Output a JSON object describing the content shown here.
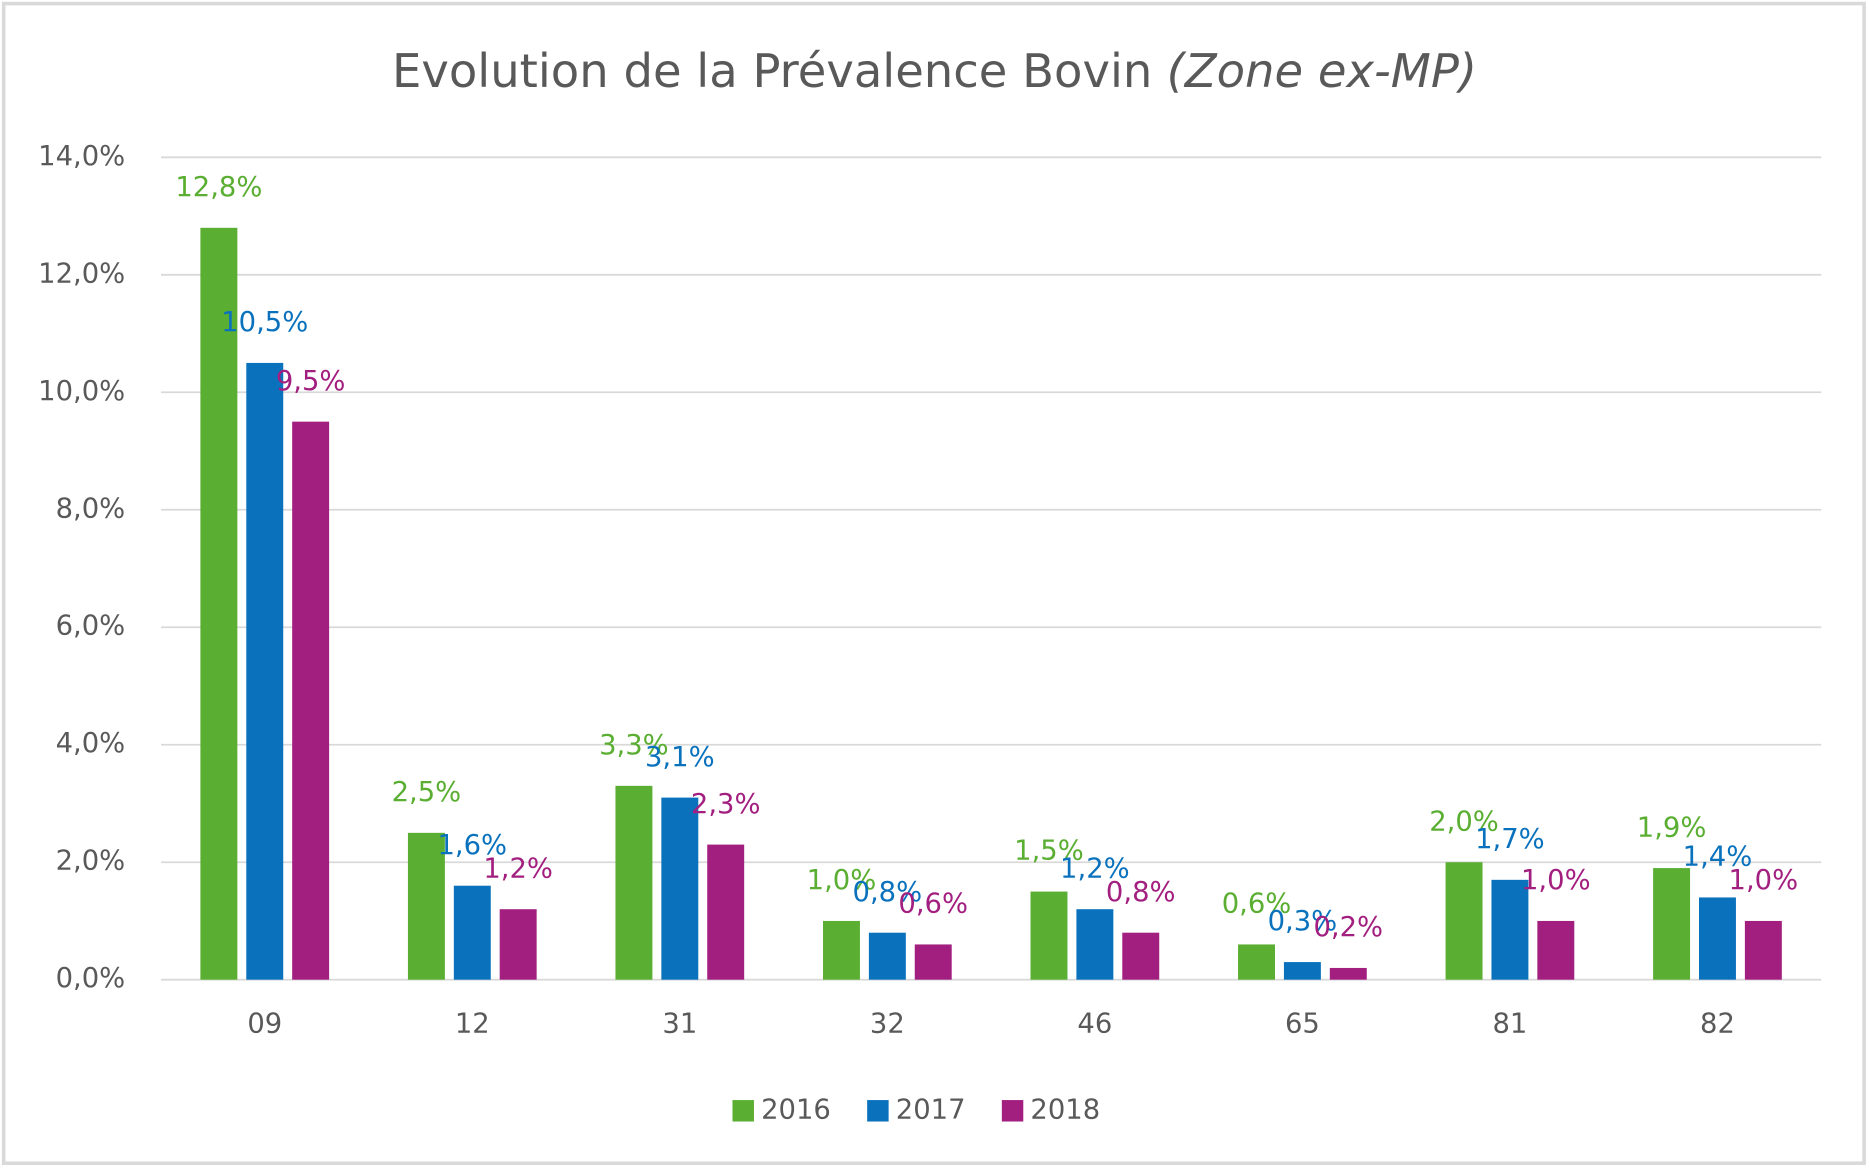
{
  "chart_data": {
    "type": "bar",
    "title": "Evolution de la Prévalence Bovin",
    "title_note": "(Zone ex-MP)",
    "categories": [
      "09",
      "12",
      "31",
      "32",
      "46",
      "65",
      "81",
      "82"
    ],
    "series": [
      {
        "name": "2016",
        "color": "#5aae32",
        "values": [
          12.8,
          2.5,
          3.3,
          1.0,
          1.5,
          0.6,
          2.0,
          1.9
        ],
        "value_labels": [
          "12,8%",
          "2,5%",
          "3,3%",
          "1,0%",
          "1,5%",
          "0,6%",
          "2,0%",
          "1,9%"
        ]
      },
      {
        "name": "2017",
        "color": "#0a72bd",
        "values": [
          10.5,
          1.6,
          3.1,
          0.8,
          1.2,
          0.3,
          1.7,
          1.4
        ],
        "value_labels": [
          "10,5%",
          "1,6%",
          "3,1%",
          "0,8%",
          "1,2%",
          "0,3%",
          "1,7%",
          "1,4%"
        ]
      },
      {
        "name": "2018",
        "color": "#a21f80",
        "values": [
          9.5,
          1.2,
          2.3,
          0.6,
          0.8,
          0.2,
          1.0,
          1.0
        ],
        "value_labels": [
          "9,5%",
          "1,2%",
          "2,3%",
          "0,6%",
          "0,8%",
          "0,2%",
          "1,0%",
          "1,0%"
        ]
      }
    ],
    "ylim": [
      0,
      14
    ],
    "yticks": [
      {
        "value": 0,
        "label": "0,0%"
      },
      {
        "value": 2,
        "label": "2,0%"
      },
      {
        "value": 4,
        "label": "4,0%"
      },
      {
        "value": 6,
        "label": "6,0%"
      },
      {
        "value": 8,
        "label": "8,0%"
      },
      {
        "value": 10,
        "label": "10,0%"
      },
      {
        "value": 12,
        "label": "12,0%"
      },
      {
        "value": 14,
        "label": "14,0%"
      }
    ],
    "grid": true,
    "legend": "bottom"
  }
}
